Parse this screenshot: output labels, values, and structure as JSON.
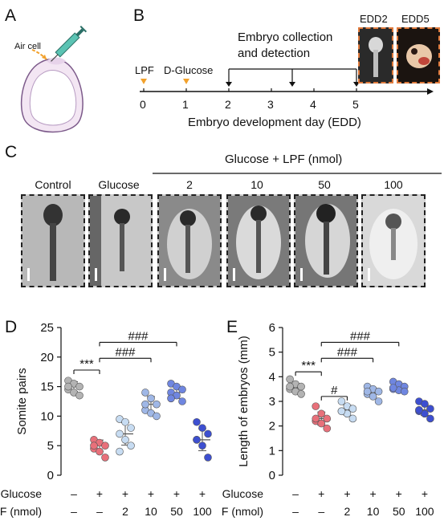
{
  "panels": {
    "a": "A",
    "b": "B",
    "c": "C",
    "d": "D",
    "e": "E"
  },
  "panel_a": {
    "air_cell_label": "Air cell"
  },
  "panel_b": {
    "collection_label_line1": "Embryo collection",
    "collection_label_line2": "and detection",
    "lpf_label": "LPF",
    "glucose_label": "D-Glucose",
    "axis_title": "Embryo development day (EDD)",
    "ticks": [
      "0",
      "1",
      "2",
      "3",
      "4",
      "5"
    ],
    "edd2_label": "EDD2",
    "edd5_label": "EDD5",
    "arrow_color": "#f2a12c"
  },
  "panel_c": {
    "group_label": "Glucose + LPF (nmol)",
    "columns": [
      "Control",
      "Glucose",
      "2",
      "10",
      "50",
      "100"
    ]
  },
  "chart_data": [
    {
      "type": "scatter",
      "ylabel": "Somite pairs",
      "ylim": [
        0,
        25
      ],
      "yticks": [
        "0",
        "5",
        "10",
        "15",
        "20",
        "25"
      ],
      "row1_label": "Glucose",
      "row2_label": "LPF (nmol)",
      "row1": [
        "–",
        "+",
        "+",
        "+",
        "+",
        "+"
      ],
      "row2": [
        "–",
        "–",
        "2",
        "10",
        "50",
        "100"
      ],
      "colors": [
        "#b3b3b3",
        "#e8707a",
        "#c7dcf2",
        "#9fb7e6",
        "#6f86e0",
        "#3d4fd0"
      ],
      "groups": [
        {
          "values": [
            16,
            15.5,
            15,
            14.5,
            14,
            13.5,
            15
          ],
          "mean": 15
        },
        {
          "values": [
            6,
            5.5,
            5,
            4.5,
            4,
            3,
            5
          ],
          "mean": 5
        },
        {
          "values": [
            9.5,
            9,
            8,
            7,
            6,
            5,
            4
          ],
          "mean": 7
        },
        {
          "values": [
            14,
            13,
            12,
            11,
            10.5,
            10,
            12
          ],
          "mean": 12
        },
        {
          "values": [
            15.5,
            15,
            14.5,
            14,
            13.5,
            12.5,
            13
          ],
          "mean": 14
        },
        {
          "values": [
            9,
            8,
            7,
            6,
            5,
            3,
            6
          ],
          "mean": 6
        }
      ],
      "annotations": [
        {
          "text": "***",
          "from": 0,
          "to": 1,
          "y": 17.8
        },
        {
          "text": "###",
          "from": 1,
          "to": 3,
          "y": 19.8
        },
        {
          "text": "###",
          "from": 1,
          "to": 4,
          "y": 22.5
        }
      ]
    },
    {
      "type": "scatter",
      "ylabel": "Length of embryos (mm)",
      "ylim": [
        0,
        6
      ],
      "yticks": [
        "0",
        "1",
        "2",
        "3",
        "4",
        "5",
        "6"
      ],
      "row1_label": "Glucose",
      "row2_label": "LPF (nmol)",
      "row1": [
        "–",
        "+",
        "+",
        "+",
        "+",
        "+"
      ],
      "row2": [
        "–",
        "–",
        "2",
        "10",
        "50",
        "100"
      ],
      "colors": [
        "#b3b3b3",
        "#e8707a",
        "#c7dcf2",
        "#9fb7e6",
        "#6f86e0",
        "#3d4fd0"
      ],
      "groups": [
        {
          "values": [
            3.9,
            3.7,
            3.6,
            3.5,
            3.4,
            3.3,
            3.6
          ],
          "mean": 3.55
        },
        {
          "values": [
            2.8,
            2.5,
            2.3,
            2.2,
            2.1,
            1.9,
            2.3
          ],
          "mean": 2.3
        },
        {
          "values": [
            3.0,
            2.8,
            2.7,
            2.6,
            2.5,
            2.3,
            2.6
          ],
          "mean": 2.65
        },
        {
          "values": [
            3.6,
            3.5,
            3.4,
            3.3,
            3.2,
            3.0,
            3.4
          ],
          "mean": 3.35
        },
        {
          "values": [
            3.8,
            3.7,
            3.6,
            3.5,
            3.45,
            3.4,
            3.55
          ],
          "mean": 3.55
        },
        {
          "values": [
            3.0,
            2.9,
            2.7,
            2.6,
            2.5,
            2.3,
            2.65
          ],
          "mean": 2.65
        }
      ],
      "annotations": [
        {
          "text": "***",
          "from": 0,
          "to": 1,
          "y": 4.2
        },
        {
          "text": "#",
          "from": 1,
          "to": 2,
          "y": 3.2
        },
        {
          "text": "###",
          "from": 1,
          "to": 3,
          "y": 4.75
        },
        {
          "text": "###",
          "from": 1,
          "to": 4,
          "y": 5.4
        }
      ]
    }
  ]
}
